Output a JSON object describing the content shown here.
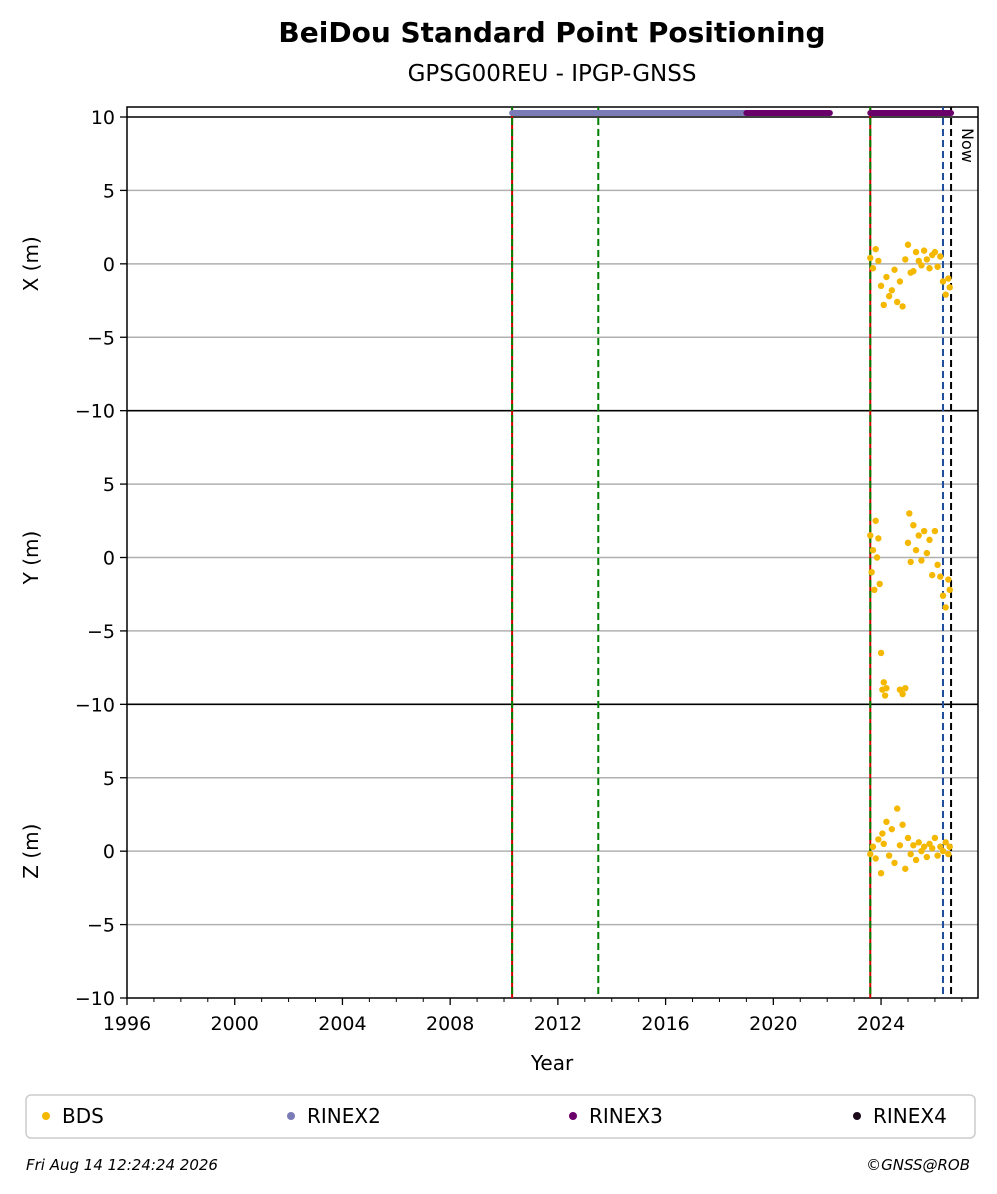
{
  "chart_data": {
    "type": "scatter",
    "title": "BeiDou Standard Point Positioning",
    "subtitle": "GPSG00REU - IPGP-GNSS",
    "xlabel": "Year",
    "xlim": [
      1996,
      2027.6
    ],
    "x_ticks": [
      "1996",
      "2000",
      "2004",
      "2008",
      "2012",
      "2016",
      "2020",
      "2024"
    ],
    "grid": true,
    "panels": [
      {
        "ylabel": "X (m)",
        "ylim": [
          -10,
          10
        ],
        "y_ticks": [
          "10",
          "5",
          "0",
          "−5",
          "−10"
        ]
      },
      {
        "ylabel": "Y (m)",
        "ylim": [
          -10,
          10
        ],
        "y_ticks": [
          "5",
          "0",
          "−5",
          "−10"
        ]
      },
      {
        "ylabel": "Z (m)",
        "ylim": [
          -10,
          10
        ],
        "y_ticks": [
          "5",
          "0",
          "−5",
          "−10"
        ]
      }
    ],
    "event_lines": [
      {
        "year": 2010.3,
        "color": "#008000",
        "style": "dashed",
        "overlay": "#cc0000"
      },
      {
        "year": 2013.5,
        "color": "#008000",
        "style": "dashed"
      },
      {
        "year": 2023.6,
        "color": "#008000",
        "style": "dashed",
        "overlay": "#cc0000"
      },
      {
        "year": 2026.3,
        "color": "#1f4e9c",
        "style": "dashed"
      },
      {
        "year": 2026.6,
        "color": "#000000",
        "style": "dashed",
        "label": "Now"
      }
    ],
    "rinex_bars": [
      {
        "series": "RINEX2",
        "start": 2010.3,
        "end": 2019.0,
        "color": "#7b7bb8"
      },
      {
        "series": "RINEX3",
        "start": 2019.0,
        "end": 2022.1,
        "color": "#6a006a"
      },
      {
        "series": "RINEX3",
        "start": 2023.6,
        "end": 2026.6,
        "color": "#6a006a"
      }
    ],
    "series": [
      {
        "name": "BDS",
        "color": "#f5b800",
        "panels": [
          [
            [
              2023.6,
              0.4
            ],
            [
              2023.7,
              -0.3
            ],
            [
              2023.8,
              1.0
            ],
            [
              2023.9,
              0.2
            ],
            [
              2024.0,
              -1.5
            ],
            [
              2024.1,
              -2.8
            ],
            [
              2024.2,
              -0.9
            ],
            [
              2024.3,
              -2.2
            ],
            [
              2024.4,
              -1.8
            ],
            [
              2024.5,
              -0.4
            ],
            [
              2024.6,
              -2.6
            ],
            [
              2024.7,
              -1.2
            ],
            [
              2024.8,
              -2.9
            ],
            [
              2024.9,
              0.3
            ],
            [
              2025.0,
              1.3
            ],
            [
              2025.1,
              -0.6
            ],
            [
              2025.2,
              -0.5
            ],
            [
              2025.3,
              0.8
            ],
            [
              2025.4,
              0.2
            ],
            [
              2025.5,
              -0.1
            ],
            [
              2025.6,
              0.9
            ],
            [
              2025.7,
              0.3
            ],
            [
              2025.8,
              -0.3
            ],
            [
              2025.9,
              0.6
            ],
            [
              2026.0,
              0.8
            ],
            [
              2026.1,
              -0.2
            ],
            [
              2026.2,
              0.5
            ],
            [
              2026.3,
              -1.2
            ],
            [
              2026.4,
              -2.1
            ],
            [
              2026.5,
              -1.0
            ],
            [
              2026.55,
              -1.6
            ]
          ],
          [
            [
              2023.6,
              1.5
            ],
            [
              2023.65,
              -1.0
            ],
            [
              2023.7,
              0.5
            ],
            [
              2023.75,
              -2.2
            ],
            [
              2023.8,
              2.5
            ],
            [
              2023.85,
              0.0
            ],
            [
              2023.9,
              1.3
            ],
            [
              2023.95,
              -1.8
            ],
            [
              2024.0,
              -6.5
            ],
            [
              2024.05,
              -9.0
            ],
            [
              2024.1,
              -8.5
            ],
            [
              2024.15,
              -9.4
            ],
            [
              2024.2,
              -8.9
            ],
            [
              2024.7,
              -9.0
            ],
            [
              2024.8,
              -9.3
            ],
            [
              2024.9,
              -8.9
            ],
            [
              2025.0,
              1.0
            ],
            [
              2025.05,
              3.0
            ],
            [
              2025.1,
              -0.3
            ],
            [
              2025.2,
              2.2
            ],
            [
              2025.3,
              0.5
            ],
            [
              2025.4,
              1.5
            ],
            [
              2025.5,
              -0.2
            ],
            [
              2025.6,
              1.8
            ],
            [
              2025.7,
              0.3
            ],
            [
              2025.8,
              1.2
            ],
            [
              2025.9,
              -1.2
            ],
            [
              2026.0,
              1.8
            ],
            [
              2026.1,
              -0.5
            ],
            [
              2026.2,
              -1.3
            ],
            [
              2026.3,
              -2.6
            ],
            [
              2026.4,
              -3.4
            ],
            [
              2026.5,
              -1.5
            ],
            [
              2026.55,
              -2.2
            ]
          ],
          [
            [
              2023.6,
              -0.2
            ],
            [
              2023.7,
              0.3
            ],
            [
              2023.8,
              -0.5
            ],
            [
              2023.9,
              0.8
            ],
            [
              2024.0,
              -1.5
            ],
            [
              2024.05,
              1.2
            ],
            [
              2024.1,
              0.5
            ],
            [
              2024.2,
              2.0
            ],
            [
              2024.3,
              -0.3
            ],
            [
              2024.4,
              1.5
            ],
            [
              2024.5,
              -0.8
            ],
            [
              2024.6,
              2.9
            ],
            [
              2024.7,
              0.4
            ],
            [
              2024.8,
              1.8
            ],
            [
              2024.9,
              -1.2
            ],
            [
              2025.0,
              0.9
            ],
            [
              2025.1,
              -0.2
            ],
            [
              2025.2,
              0.4
            ],
            [
              2025.3,
              -0.6
            ],
            [
              2025.4,
              0.6
            ],
            [
              2025.5,
              0.0
            ],
            [
              2025.6,
              0.3
            ],
            [
              2025.7,
              -0.4
            ],
            [
              2025.8,
              0.5
            ],
            [
              2025.9,
              0.2
            ],
            [
              2026.0,
              0.9
            ],
            [
              2026.1,
              -0.3
            ],
            [
              2026.2,
              0.3
            ],
            [
              2026.3,
              0.0
            ],
            [
              2026.4,
              0.6
            ],
            [
              2026.5,
              -0.2
            ],
            [
              2026.55,
              0.3
            ]
          ]
        ]
      },
      {
        "name": "RINEX2",
        "color": "#7b7bb8"
      },
      {
        "name": "RINEX3",
        "color": "#6a006a"
      },
      {
        "name": "RINEX4",
        "color": "#1a0a1a"
      }
    ],
    "legend_position": "bottom"
  },
  "footer": {
    "timestamp": "Fri Aug 14 12:24:24 2026",
    "credit": "©GNSS@ROB"
  }
}
